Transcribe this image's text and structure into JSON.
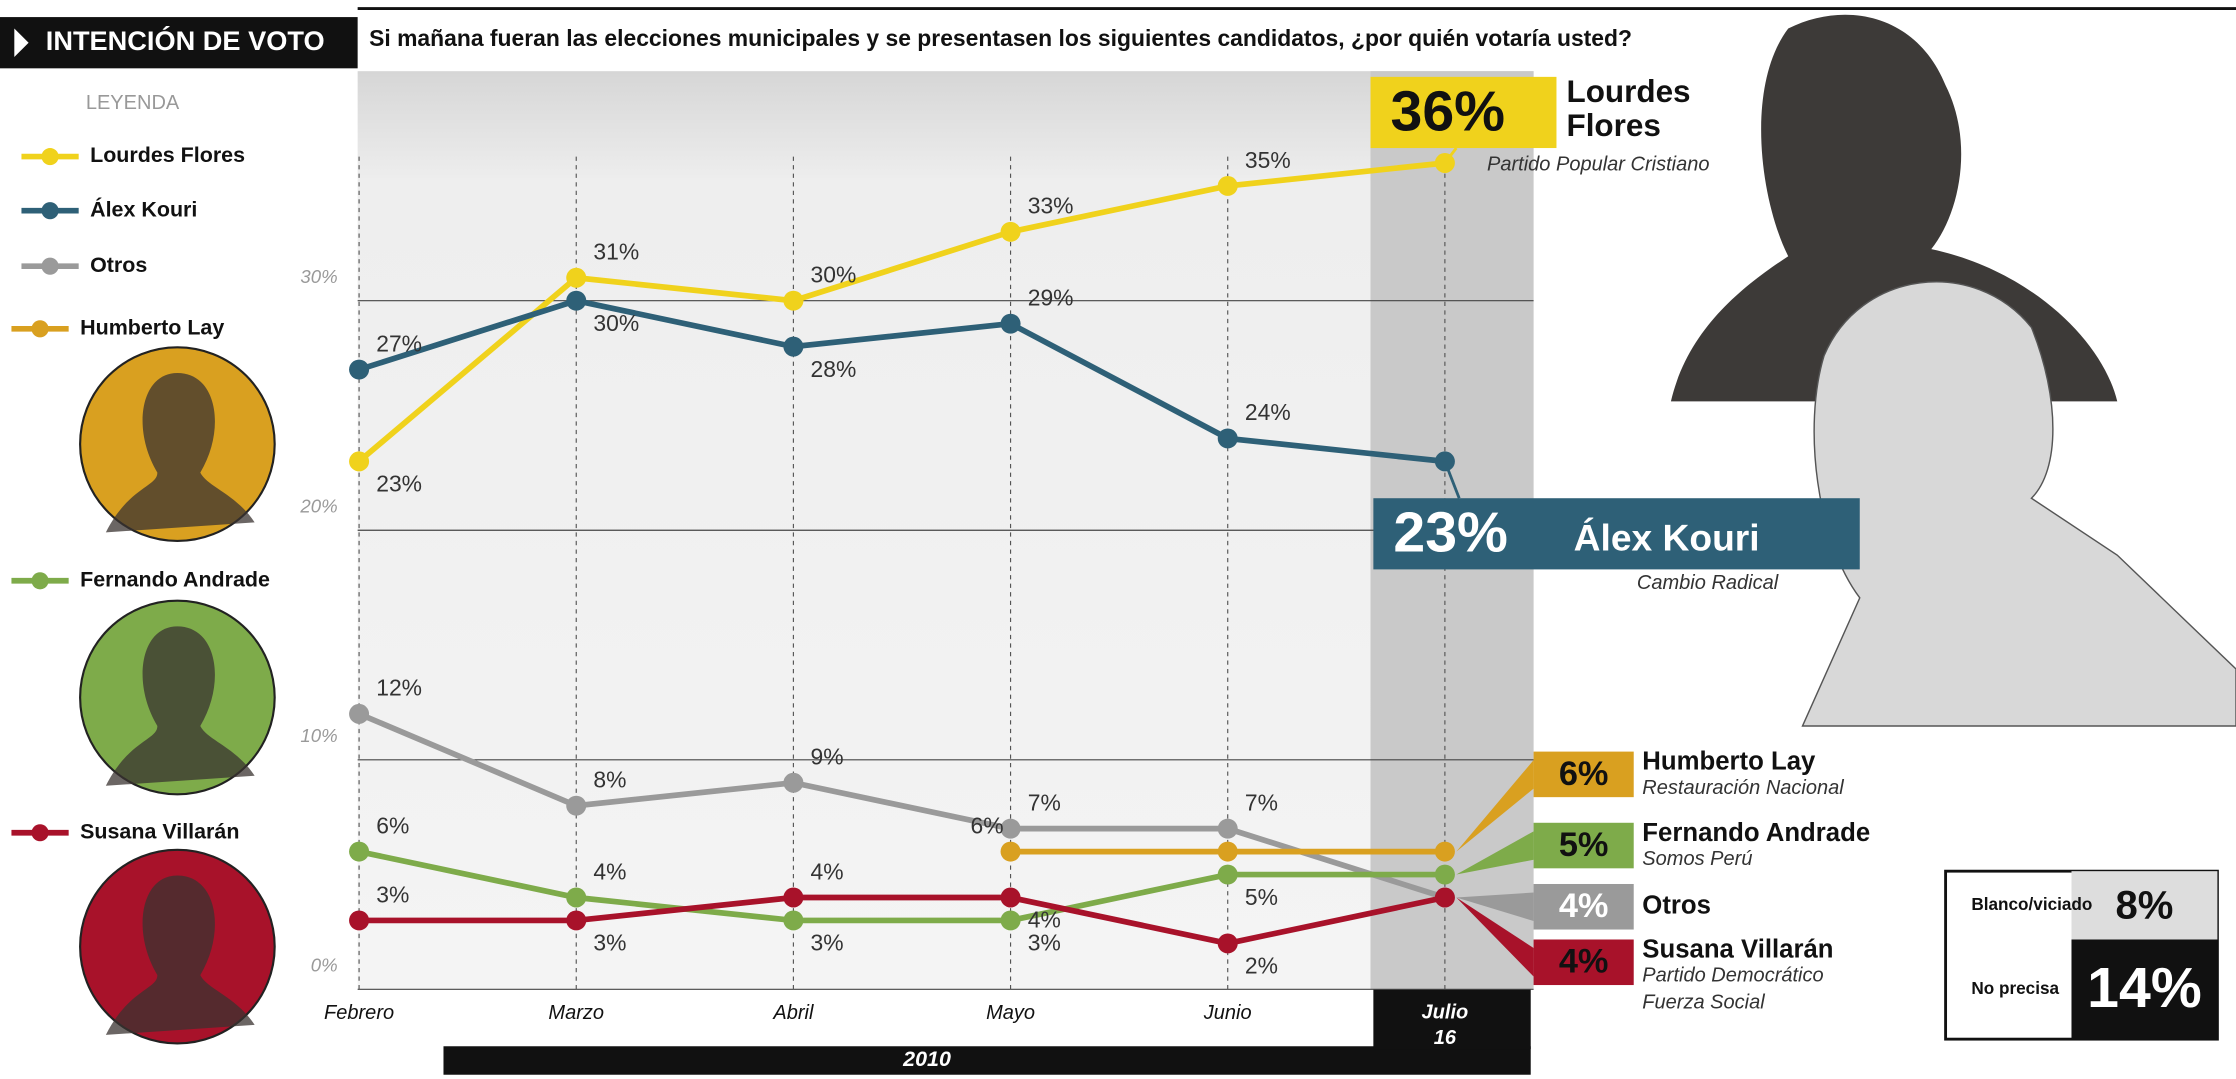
{
  "header": {
    "title": "INTENCIÓN DE VOTO",
    "question": "Si mañana fueran las elecciones municipales y se presentasen los siguientes candidatos, ¿por quién votaría usted?",
    "legend_title": "LEYENDA",
    "year": "2010"
  },
  "chart_data": {
    "type": "line",
    "categories": [
      "Febrero",
      "Marzo",
      "Abril",
      "Mayo",
      "Junio",
      "Julio 16"
    ],
    "ylim": [
      0,
      40
    ],
    "yticks": [
      {
        "value": 0,
        "label": "0%"
      },
      {
        "value": 10,
        "label": "10%"
      },
      {
        "value": 20,
        "label": "20%"
      },
      {
        "value": 30,
        "label": "30%"
      }
    ],
    "grid": true,
    "series": [
      {
        "name": "Lourdes Flores",
        "party": "Partido Popular Cristiano",
        "color": "#f0d21c",
        "values": [
          23,
          31,
          30,
          33,
          35,
          36
        ],
        "value_labels": [
          "23%",
          "31%",
          "30%",
          "33%",
          "35%",
          "36%"
        ]
      },
      {
        "name": "Álex Kouri",
        "party": "Cambio Radical",
        "color": "#2e6077",
        "values": [
          27,
          30,
          28,
          29,
          24,
          23
        ],
        "value_labels": [
          "27%",
          "30%",
          "28%",
          "29%",
          "24%",
          "23%"
        ]
      },
      {
        "name": "Otros",
        "color": "#9a9a9a",
        "values": [
          12,
          8,
          9,
          7,
          7,
          4
        ],
        "value_labels": [
          "12%",
          "8%",
          "9%",
          "7%",
          "7%",
          "4%"
        ]
      },
      {
        "name": "Humberto Lay",
        "party": "Restauración Nacional",
        "color": "#d9a020",
        "values": [
          null,
          null,
          null,
          6,
          6,
          6
        ],
        "value_labels": [
          null,
          null,
          null,
          "6%",
          null,
          "6%"
        ]
      },
      {
        "name": "Fernando Andrade",
        "party": "Somos Perú",
        "color": "#7eab4a",
        "values": [
          6,
          4,
          3,
          3,
          5,
          5
        ],
        "value_labels": [
          "6%",
          "4%",
          "3%",
          "3%",
          "5%",
          "5%"
        ]
      },
      {
        "name": "Susana Villarán",
        "party": "Partido Democrático Fuerza Social",
        "color": "#a8122a",
        "values": [
          3,
          3,
          4,
          4,
          2,
          4
        ],
        "value_labels": [
          "3%",
          "3%",
          "4%",
          "4%",
          "2%",
          "4%"
        ]
      }
    ],
    "extra": [
      {
        "label": "Blanco/viciado",
        "value": 8,
        "value_label": "8%"
      },
      {
        "label": "No precisa",
        "value": 14,
        "value_label": "14%"
      }
    ]
  }
}
